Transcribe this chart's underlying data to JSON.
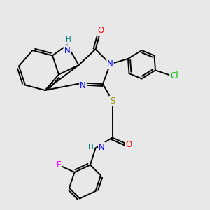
{
  "bg_color": "#e8e8e8",
  "atom_colors": {
    "N": "#0000ff",
    "O": "#ff0000",
    "S": "#999900",
    "Cl": "#00bb00",
    "F": "#ff00ff",
    "H": "#008080",
    "C": "#000000"
  },
  "bond_color": "#000000",
  "bond_width": 1.4,
  "font_size": 8.5,
  "figsize": [
    3.0,
    3.0
  ],
  "dpi": 100
}
